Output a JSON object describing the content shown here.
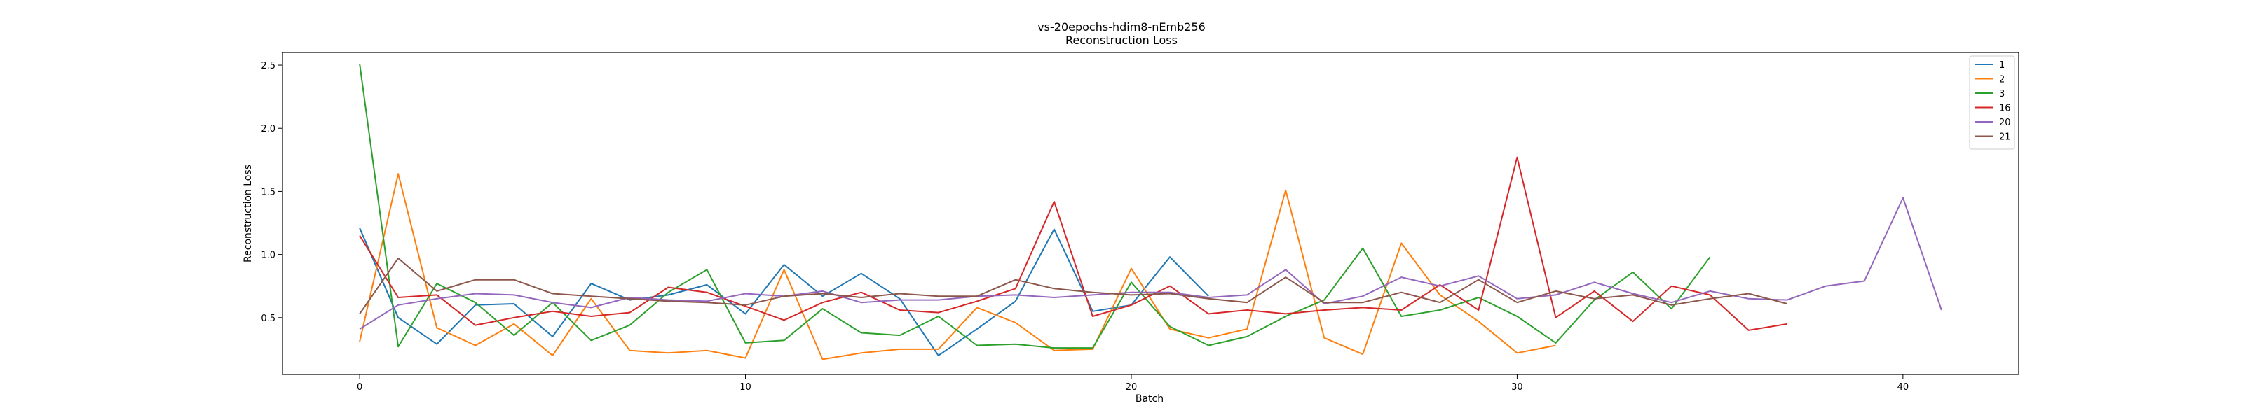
{
  "chart_data": {
    "type": "line",
    "title": "vs-20epochs-hdim8-nEmb256",
    "subtitle": "Reconstruction Loss",
    "xlabel": "Batch",
    "ylabel": "Reconstruction Loss",
    "xlim": [
      -2,
      43
    ],
    "ylim": [
      0.05,
      2.6
    ],
    "xticks": [
      0,
      10,
      20,
      30,
      40
    ],
    "yticks": [
      0.5,
      1.0,
      1.5,
      2.0,
      2.5
    ],
    "ytick_labels": [
      "0.5",
      "1.0",
      "1.5",
      "2.0",
      "2.5"
    ],
    "grid": false,
    "legend_position": "top-right",
    "series": [
      {
        "name": "1",
        "color": "#1f77b4",
        "x": [
          0,
          1,
          2,
          3,
          4,
          5,
          6,
          7,
          8,
          9,
          10,
          11,
          12,
          13,
          14,
          15,
          16,
          17,
          18,
          19,
          20,
          21,
          22
        ],
        "values": [
          1.21,
          0.5,
          0.29,
          0.6,
          0.61,
          0.35,
          0.77,
          0.64,
          0.68,
          0.76,
          0.53,
          0.92,
          0.67,
          0.85,
          0.65,
          0.2,
          0.41,
          0.63,
          1.2,
          0.55,
          0.6,
          0.98,
          0.67
        ]
      },
      {
        "name": "2",
        "color": "#ff7f0e",
        "x": [
          0,
          1,
          2,
          3,
          4,
          5,
          6,
          7,
          8,
          9,
          10,
          11,
          12,
          13,
          14,
          15,
          16,
          17,
          18,
          19,
          20,
          21,
          22,
          23,
          24,
          25,
          26,
          27,
          28,
          29,
          30,
          31
        ],
        "values": [
          0.31,
          1.64,
          0.42,
          0.28,
          0.45,
          0.2,
          0.65,
          0.24,
          0.22,
          0.24,
          0.18,
          0.88,
          0.17,
          0.22,
          0.25,
          0.25,
          0.58,
          0.46,
          0.24,
          0.25,
          0.89,
          0.41,
          0.34,
          0.41,
          1.51,
          0.34,
          0.21,
          1.09,
          0.68,
          0.47,
          0.22,
          0.28
        ]
      },
      {
        "name": "3",
        "color": "#2ca02c",
        "x": [
          0,
          1,
          2,
          3,
          4,
          5,
          6,
          7,
          8,
          9,
          10,
          11,
          12,
          13,
          14,
          15,
          16,
          17,
          18,
          19,
          20,
          21,
          22,
          23,
          24,
          25,
          26,
          27,
          28,
          29,
          30,
          31,
          32,
          33,
          34,
          35
        ],
        "values": [
          2.51,
          0.27,
          0.77,
          0.62,
          0.36,
          0.62,
          0.32,
          0.44,
          0.7,
          0.88,
          0.3,
          0.32,
          0.57,
          0.38,
          0.36,
          0.51,
          0.28,
          0.29,
          0.26,
          0.26,
          0.78,
          0.43,
          0.28,
          0.35,
          0.51,
          0.64,
          1.05,
          0.51,
          0.56,
          0.66,
          0.51,
          0.3,
          0.64,
          0.86,
          0.57,
          0.98
        ]
      },
      {
        "name": "16",
        "color": "#d62728",
        "x": [
          0,
          1,
          2,
          3,
          4,
          5,
          6,
          7,
          8,
          9,
          10,
          11,
          12,
          13,
          14,
          15,
          16,
          17,
          18,
          19,
          20,
          21,
          22,
          23,
          24,
          25,
          26,
          27,
          28,
          29,
          30,
          31,
          32,
          33,
          34,
          35,
          36,
          37
        ],
        "values": [
          1.15,
          0.66,
          0.68,
          0.44,
          0.5,
          0.55,
          0.51,
          0.54,
          0.74,
          0.7,
          0.59,
          0.48,
          0.62,
          0.7,
          0.56,
          0.54,
          0.63,
          0.73,
          1.42,
          0.51,
          0.6,
          0.75,
          0.53,
          0.56,
          0.53,
          0.56,
          0.58,
          0.56,
          0.76,
          0.56,
          1.77,
          0.5,
          0.71,
          0.47,
          0.75,
          0.68,
          0.4,
          0.45
        ]
      },
      {
        "name": "20",
        "color": "#9467bd",
        "x": [
          0,
          1,
          2,
          3,
          4,
          5,
          6,
          7,
          8,
          9,
          10,
          11,
          12,
          13,
          14,
          15,
          16,
          17,
          18,
          19,
          20,
          21,
          22,
          23,
          24,
          25,
          26,
          27,
          28,
          29,
          30,
          31,
          32,
          33,
          34,
          35,
          36,
          37,
          38,
          39,
          40,
          41
        ],
        "values": [
          0.41,
          0.6,
          0.65,
          0.69,
          0.68,
          0.62,
          0.58,
          0.66,
          0.64,
          0.63,
          0.69,
          0.67,
          0.71,
          0.62,
          0.64,
          0.64,
          0.67,
          0.68,
          0.66,
          0.68,
          0.7,
          0.7,
          0.66,
          0.68,
          0.88,
          0.61,
          0.67,
          0.82,
          0.75,
          0.83,
          0.65,
          0.68,
          0.78,
          0.69,
          0.62,
          0.71,
          0.65,
          0.64,
          0.75,
          0.79,
          1.45,
          0.56
        ]
      },
      {
        "name": "21",
        "color": "#8c564b",
        "x": [
          0,
          1,
          2,
          3,
          4,
          5,
          6,
          7,
          8,
          9,
          10,
          11,
          12,
          13,
          14,
          15,
          16,
          17,
          18,
          19,
          20,
          21,
          22,
          23,
          24,
          25,
          26,
          27,
          28,
          29,
          30,
          31,
          32,
          33,
          34,
          35,
          36,
          37
        ],
        "values": [
          0.53,
          0.97,
          0.71,
          0.8,
          0.8,
          0.69,
          0.67,
          0.65,
          0.63,
          0.62,
          0.6,
          0.67,
          0.69,
          0.66,
          0.69,
          0.67,
          0.67,
          0.8,
          0.73,
          0.7,
          0.68,
          0.69,
          0.65,
          0.62,
          0.82,
          0.62,
          0.62,
          0.7,
          0.62,
          0.8,
          0.62,
          0.71,
          0.65,
          0.68,
          0.6,
          0.65,
          0.69,
          0.61
        ]
      }
    ]
  }
}
